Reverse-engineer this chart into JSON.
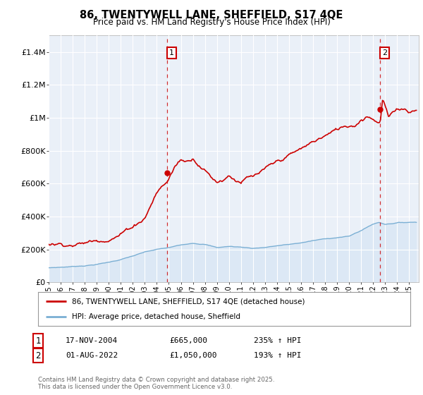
{
  "title": "86, TWENTYWELL LANE, SHEFFIELD, S17 4QE",
  "subtitle": "Price paid vs. HM Land Registry's House Price Index (HPI)",
  "ylabel_ticks": [
    "£0",
    "£200K",
    "£400K",
    "£600K",
    "£800K",
    "£1M",
    "£1.2M",
    "£1.4M"
  ],
  "ytick_values": [
    0,
    200000,
    400000,
    600000,
    800000,
    1000000,
    1200000,
    1400000
  ],
  "ylim": [
    0,
    1500000
  ],
  "xlim_start": 1995.0,
  "xlim_end": 2025.8,
  "sale1_date": 2004.88,
  "sale1_price": 665000,
  "sale1_label": "1",
  "sale2_date": 2022.58,
  "sale2_price": 1050000,
  "sale2_label": "2",
  "red_line_color": "#cc0000",
  "blue_line_color": "#7aafd4",
  "blue_fill_color": "#dce8f5",
  "vline_color": "#cc0000",
  "background_color": "#ffffff",
  "plot_bg_color": "#eaf0f8",
  "grid_color": "#ffffff",
  "legend_label_red": "86, TWENTYWELL LANE, SHEFFIELD, S17 4QE (detached house)",
  "legend_label_blue": "HPI: Average price, detached house, Sheffield",
  "table_row1": [
    "1",
    "17-NOV-2004",
    "£665,000",
    "235% ↑ HPI"
  ],
  "table_row2": [
    "2",
    "01-AUG-2022",
    "£1,050,000",
    "193% ↑ HPI"
  ],
  "footnote": "Contains HM Land Registry data © Crown copyright and database right 2025.\nThis data is licensed under the Open Government Licence v3.0.",
  "xlabel_years": [
    1995,
    1996,
    1997,
    1998,
    1999,
    2000,
    2001,
    2002,
    2003,
    2004,
    2005,
    2006,
    2007,
    2008,
    2009,
    2010,
    2011,
    2012,
    2013,
    2014,
    2015,
    2016,
    2017,
    2018,
    2019,
    2020,
    2021,
    2022,
    2023,
    2024,
    2025
  ]
}
